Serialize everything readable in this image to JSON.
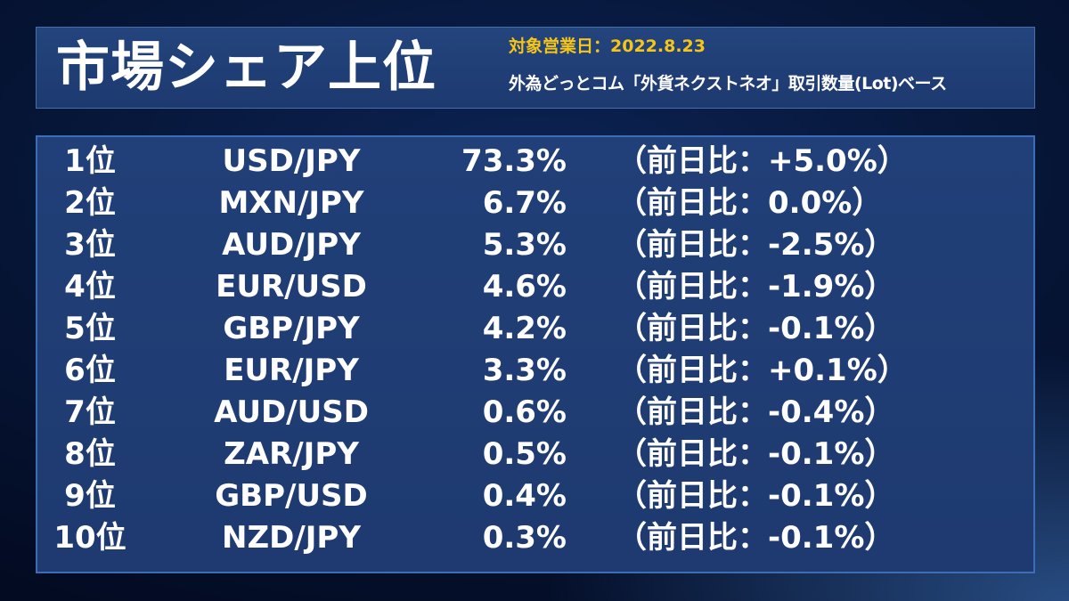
{
  "header": {
    "title": "市場シェア上位",
    "business_date": "対象営業日：2022.8.23",
    "basis_note": "外為どっとコム「外貨ネクストネオ」取引数量(Lot)ベース"
  },
  "rankings": [
    {
      "rank": "1位",
      "pair": "USD/JPY",
      "share": "73.3%",
      "change": "（前日比：+5.0%）"
    },
    {
      "rank": "2位",
      "pair": "MXN/JPY",
      "share": "6.7%",
      "change": "（前日比：0.0%）"
    },
    {
      "rank": "3位",
      "pair": "AUD/JPY",
      "share": "5.3%",
      "change": "（前日比：-2.5%）"
    },
    {
      "rank": "4位",
      "pair": "EUR/USD",
      "share": "4.6%",
      "change": "（前日比：-1.9%）"
    },
    {
      "rank": "5位",
      "pair": "GBP/JPY",
      "share": "4.2%",
      "change": "（前日比：-0.1%）"
    },
    {
      "rank": "6位",
      "pair": "EUR/JPY",
      "share": "3.3%",
      "change": "（前日比：+0.1%）"
    },
    {
      "rank": "7位",
      "pair": "AUD/USD",
      "share": "0.6%",
      "change": "（前日比：-0.4%）"
    },
    {
      "rank": "8位",
      "pair": "ZAR/JPY",
      "share": "0.5%",
      "change": "（前日比：-0.1%）"
    },
    {
      "rank": "9位",
      "pair": "GBP/USD",
      "share": "0.4%",
      "change": "（前日比：-0.1%）"
    },
    {
      "rank": "10位",
      "pair": "NZD/JPY",
      "share": "0.3%",
      "change": "（前日比：-0.1%）"
    }
  ],
  "colors": {
    "accent_yellow": "#f5c518",
    "panel_blue": "#1f3c73",
    "border_blue": "#3d6db5",
    "background_navy": "#061536"
  }
}
